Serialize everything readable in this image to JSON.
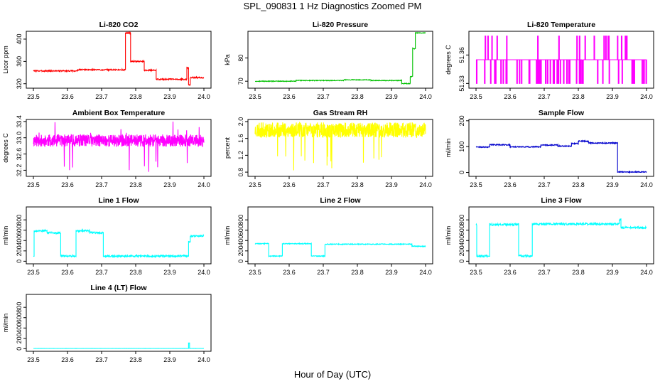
{
  "figure": {
    "title": "SPL_090831  1 Hz Diagnostics Zoomed PM",
    "xlabel": "Hour of Day (UTC)"
  },
  "chart_data": [
    {
      "id": "co2",
      "type": "line",
      "title": "Li-820 CO2",
      "ylabel": "Licor ppm",
      "color": "#ff0000",
      "xlim": [
        23.5,
        24.0
      ],
      "ylim": [
        312,
        414
      ],
      "yticks": [
        320,
        360,
        400
      ],
      "xticks": [
        23.5,
        23.6,
        23.7,
        23.8,
        23.9,
        24.0
      ],
      "segments": [
        [
          23.5,
          23.63,
          343
        ],
        [
          23.63,
          23.77,
          345
        ],
        [
          23.77,
          23.785,
          411
        ],
        [
          23.785,
          23.825,
          360
        ],
        [
          23.825,
          23.86,
          344
        ],
        [
          23.86,
          23.95,
          328
        ],
        [
          23.95,
          23.955,
          348
        ],
        [
          23.955,
          23.96,
          318
        ],
        [
          23.96,
          24.0,
          331
        ]
      ],
      "noise": 1.2
    },
    {
      "id": "pressure",
      "type": "line",
      "title": "Li-820 Pressure",
      "ylabel": "kPa",
      "color": "#00c000",
      "xlim": [
        23.5,
        24.0
      ],
      "ylim": [
        67,
        91.5
      ],
      "yticks": [
        70,
        80
      ],
      "xticks": [
        23.5,
        23.6,
        23.7,
        23.8,
        23.9,
        24.0
      ],
      "segments": [
        [
          23.5,
          23.62,
          70.0
        ],
        [
          23.62,
          23.76,
          70.3
        ],
        [
          23.76,
          23.84,
          70.6
        ],
        [
          23.84,
          23.93,
          70.3
        ],
        [
          23.93,
          23.955,
          69.0
        ],
        [
          23.955,
          23.962,
          72.0
        ],
        [
          23.962,
          23.97,
          84.0
        ],
        [
          23.97,
          24.0,
          90.8
        ]
      ],
      "noise": 0.15
    },
    {
      "id": "licor_temp",
      "type": "line",
      "title": "Li-820 Temperature",
      "ylabel": "degrees C",
      "color": "#ff00ff",
      "xlim": [
        23.5,
        24.0
      ],
      "ylim": [
        51.325,
        51.385
      ],
      "yticks": [
        51.33,
        51.36
      ],
      "xticks": [
        23.5,
        23.6,
        23.7,
        23.8,
        23.9,
        24.0
      ],
      "segments": [
        [
          23.5,
          24.0,
          51.355
        ]
      ],
      "spikes": {
        "low": 51.33,
        "high": 51.38,
        "seed": 7,
        "count": 70
      }
    },
    {
      "id": "ambient_box_temp",
      "type": "line",
      "title": "Ambient Box Temperature",
      "ylabel": "degrees C",
      "color": "#ff00ff",
      "xlim": [
        23.5,
        24.0
      ],
      "ylim": [
        32.05,
        33.45
      ],
      "yticks": [
        32.2,
        32.6,
        33.0,
        33.4
      ],
      "xticks": [
        23.5,
        23.6,
        23.7,
        23.8,
        23.9,
        24.0
      ],
      "band": {
        "low": 32.78,
        "high": 33.08,
        "seed": 11,
        "outlier_low": 32.15,
        "outlier_high": 33.4
      }
    },
    {
      "id": "gas_stream_rh",
      "type": "line",
      "title": "Gas Stream RH",
      "ylabel": "percent",
      "color": "#ffff00",
      "xlim": [
        23.5,
        24.0
      ],
      "ylim": [
        0.7,
        2.05
      ],
      "yticks": [
        0.8,
        1.2,
        1.6,
        2.0
      ],
      "xticks": [
        23.5,
        23.6,
        23.7,
        23.8,
        23.9,
        24.0
      ],
      "band": {
        "low": 1.62,
        "high": 1.98,
        "seed": 23,
        "outlier_low": 0.8,
        "outlier_high": 2.0
      }
    },
    {
      "id": "sample_flow",
      "type": "line",
      "title": "Sample Flow",
      "ylabel": "ml/min",
      "color": "#0000cc",
      "xlim": [
        23.5,
        24.0
      ],
      "ylim": [
        -15,
        205
      ],
      "yticks": [
        0,
        100,
        200
      ],
      "xticks": [
        23.5,
        23.6,
        23.7,
        23.8,
        23.9,
        24.0
      ],
      "segments": [
        [
          23.5,
          23.54,
          98
        ],
        [
          23.54,
          23.6,
          107
        ],
        [
          23.6,
          23.69,
          99
        ],
        [
          23.69,
          23.74,
          106
        ],
        [
          23.74,
          23.78,
          102
        ],
        [
          23.78,
          23.8,
          112
        ],
        [
          23.8,
          23.83,
          121
        ],
        [
          23.83,
          23.915,
          114
        ],
        [
          23.915,
          24.0,
          2
        ]
      ],
      "noise": 2
    },
    {
      "id": "line1_flow",
      "type": "line",
      "title": "Line 1 Flow",
      "ylabel": "ml/min",
      "color": "#00ffff",
      "xlim": [
        23.5,
        24.0
      ],
      "ylim": [
        -50,
        1050
      ],
      "yticks": [
        0,
        200,
        400,
        600,
        800
      ],
      "xticks": [
        23.5,
        23.6,
        23.7,
        23.8,
        23.9,
        24.0
      ],
      "segments": [
        [
          23.5,
          23.502,
          100
        ],
        [
          23.502,
          23.54,
          590
        ],
        [
          23.54,
          23.58,
          550
        ],
        [
          23.58,
          23.625,
          100
        ],
        [
          23.625,
          23.665,
          590
        ],
        [
          23.665,
          23.705,
          550
        ],
        [
          23.705,
          23.955,
          100
        ],
        [
          23.955,
          23.96,
          380
        ],
        [
          23.96,
          24.0,
          490
        ]
      ],
      "noise": 18
    },
    {
      "id": "line2_flow",
      "type": "line",
      "title": "Line 2 Flow",
      "ylabel": "ml/min",
      "color": "#00ffff",
      "xlim": [
        23.5,
        24.0
      ],
      "ylim": [
        -50,
        1050
      ],
      "yticks": [
        0,
        200,
        400,
        600,
        800
      ],
      "xticks": [
        23.5,
        23.6,
        23.7,
        23.8,
        23.9,
        24.0
      ],
      "segments": [
        [
          23.5,
          23.54,
          340
        ],
        [
          23.54,
          23.58,
          100
        ],
        [
          23.58,
          23.665,
          340
        ],
        [
          23.665,
          23.705,
          100
        ],
        [
          23.705,
          23.96,
          330
        ],
        [
          23.96,
          24.0,
          290
        ]
      ],
      "noise": 8
    },
    {
      "id": "line3_flow",
      "type": "line",
      "title": "Line 3 Flow",
      "ylabel": "ml/min",
      "color": "#00ffff",
      "xlim": [
        23.5,
        24.0
      ],
      "ylim": [
        -50,
        1050
      ],
      "yticks": [
        0,
        200,
        400,
        600,
        800
      ],
      "xticks": [
        23.5,
        23.6,
        23.7,
        23.8,
        23.9,
        24.0
      ],
      "segments": [
        [
          23.5,
          23.502,
          700
        ],
        [
          23.502,
          23.54,
          100
        ],
        [
          23.54,
          23.625,
          710
        ],
        [
          23.625,
          23.665,
          100
        ],
        [
          23.665,
          23.92,
          720
        ],
        [
          23.92,
          23.925,
          800
        ],
        [
          23.925,
          24.0,
          650
        ]
      ],
      "noise": 20
    },
    {
      "id": "line4_flow",
      "type": "line",
      "title": "Line 4 (LT) Flow",
      "ylabel": "ml/min",
      "color": "#00ffff",
      "xlim": [
        23.5,
        24.0
      ],
      "ylim": [
        -50,
        1050
      ],
      "yticks": [
        0,
        200,
        400,
        600,
        800
      ],
      "xticks": [
        23.5,
        23.6,
        23.7,
        23.8,
        23.9,
        24.0
      ],
      "segments": [
        [
          23.5,
          23.955,
          5
        ],
        [
          23.955,
          23.958,
          110
        ],
        [
          23.958,
          24.0,
          5
        ]
      ],
      "noise": 1
    }
  ]
}
